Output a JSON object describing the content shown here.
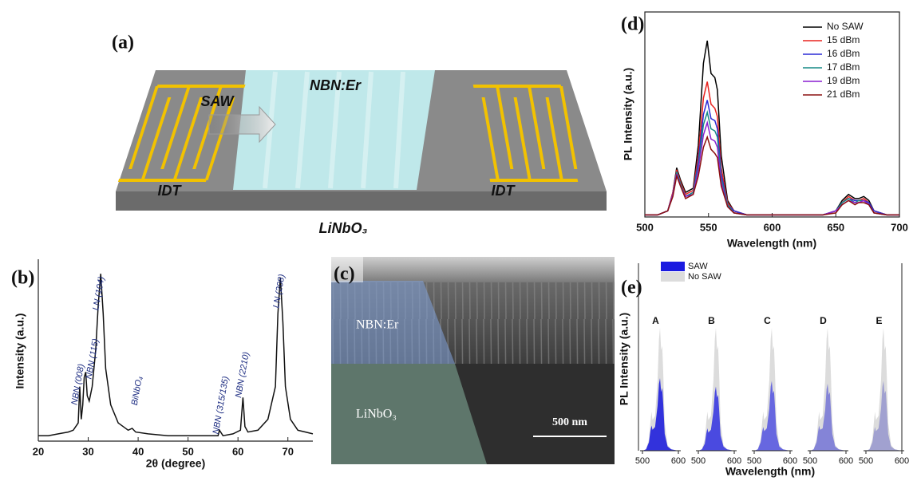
{
  "figure": {
    "panel_a": {
      "label": "(a)",
      "film": "NBN:Er",
      "wave": "SAW",
      "idt_left": "IDT",
      "idt_right": "IDT",
      "substrate": "LiNbO₃"
    },
    "panel_c": {
      "label": "(c)",
      "layer_top": "NBN:Er",
      "layer_bottom": "LiNbO₃",
      "scale_bar": "500 nm"
    }
  },
  "chart_data": [
    {
      "type": "line",
      "label": "(b)",
      "x_label": "2θ (degree)",
      "y_label": "Intensity (a.u.)",
      "x": [
        20,
        22,
        24,
        26,
        27,
        28,
        28.3,
        28.6,
        28.9,
        29.2,
        29.5,
        29.8,
        30.2,
        30.8,
        31.5,
        32,
        32.5,
        33,
        33.5,
        34.5,
        36,
        38,
        38.8,
        39.5,
        42,
        46,
        50,
        54,
        56,
        56.3,
        57,
        59,
        60.5,
        61,
        61.4,
        62,
        64,
        66,
        67.5,
        68,
        68.5,
        69,
        69.5,
        70.5,
        72,
        75
      ],
      "series": [
        {
          "color": "#111111",
          "values": [
            3,
            3,
            4,
            5,
            6,
            10,
            30,
            12,
            20,
            35,
            38,
            25,
            22,
            30,
            50,
            75,
            92,
            70,
            40,
            20,
            10,
            6,
            7,
            5,
            4,
            3,
            3,
            3,
            3,
            6,
            3,
            4,
            6,
            24,
            8,
            5,
            6,
            12,
            30,
            70,
            90,
            65,
            30,
            12,
            6,
            4
          ]
        }
      ],
      "annotations": [
        "NBN (008)",
        "NBN (115)",
        "LN (104)",
        "BiNbO₄",
        "NBN (315/135)",
        "NBN (2210)",
        "LN (208)"
      ],
      "xlim": [
        20,
        75
      ],
      "xticks": [
        20,
        30,
        40,
        50,
        60,
        70
      ],
      "ylim": [
        0,
        100
      ]
    },
    {
      "type": "line",
      "label": "(d)",
      "x_label": "Wavelength (nm)",
      "y_label": "PL Intensity (a.u.)",
      "x": [
        500,
        510,
        518,
        522,
        525,
        528,
        532,
        538,
        542,
        546,
        549,
        552,
        555,
        557,
        560,
        565,
        570,
        580,
        600,
        640,
        650,
        655,
        660,
        665,
        668,
        672,
        676,
        680,
        690,
        700
      ],
      "series": [
        {
          "name": "No SAW",
          "color": "#000000",
          "values": [
            1,
            1,
            3,
            12,
            24,
            18,
            12,
            14,
            35,
            75,
            86,
            70,
            68,
            62,
            30,
            8,
            3,
            1,
            1,
            1,
            3,
            8,
            11,
            9,
            9,
            10,
            8,
            3,
            1,
            1
          ]
        },
        {
          "name": "15 dBm",
          "color": "#e8231f",
          "values": [
            1,
            1,
            3,
            12,
            23,
            17,
            11,
            13,
            30,
            58,
            66,
            55,
            53,
            49,
            24,
            7,
            3,
            1,
            1,
            1,
            3,
            7,
            10,
            8,
            8,
            9,
            7,
            3,
            1,
            1
          ]
        },
        {
          "name": "16 dBm",
          "color": "#2b2bd6",
          "values": [
            1,
            1,
            3,
            11,
            22,
            16,
            10,
            12,
            27,
            50,
            57,
            48,
            47,
            43,
            21,
            6,
            3,
            1,
            1,
            1,
            3,
            7,
            9,
            8,
            8,
            8,
            7,
            3,
            1,
            1
          ]
        },
        {
          "name": "17 dBm",
          "color": "#178a86",
          "values": [
            1,
            1,
            3,
            11,
            22,
            16,
            10,
            12,
            25,
            45,
            51,
            43,
            42,
            39,
            19,
            6,
            2,
            1,
            1,
            1,
            3,
            7,
            9,
            7,
            8,
            8,
            6,
            2,
            1,
            1
          ]
        },
        {
          "name": "19 dBm",
          "color": "#8a1fd0",
          "values": [
            1,
            1,
            3,
            11,
            21,
            15,
            10,
            11,
            23,
            40,
            46,
            38,
            37,
            34,
            17,
            5,
            2,
            1,
            1,
            1,
            3,
            6,
            8,
            7,
            7,
            8,
            6,
            2,
            1,
            1
          ]
        },
        {
          "name": "21 dBm",
          "color": "#8b1010",
          "values": [
            1,
            1,
            3,
            10,
            20,
            15,
            9,
            11,
            20,
            34,
            39,
            33,
            31,
            29,
            15,
            5,
            2,
            1,
            1,
            1,
            2,
            6,
            8,
            6,
            7,
            7,
            6,
            2,
            1,
            1
          ]
        }
      ],
      "xlim": [
        500,
        700
      ],
      "xticks": [
        500,
        550,
        600,
        650,
        700
      ],
      "ylim": [
        0,
        100
      ],
      "legend": "upper right"
    },
    {
      "type": "area",
      "label": "(e)",
      "x_label": "Wavelength (nm)",
      "y_label": "PL Intensity (a.u.)",
      "x": [
        500,
        510,
        518,
        522,
        525,
        528,
        535,
        542,
        546,
        549,
        552,
        555,
        558,
        562,
        570,
        580,
        600
      ],
      "xlim": [
        500,
        600
      ],
      "xticks": [
        500,
        600
      ],
      "ylim": [
        0,
        100
      ],
      "legend": "upper left",
      "series": [
        {
          "name": "SAW",
          "color": "#1a1ae0"
        },
        {
          "name": "No SAW",
          "color": "#dcdcdc",
          "values": [
            0,
            1,
            8,
            20,
            28,
            22,
            25,
            50,
            80,
            88,
            72,
            75,
            55,
            20,
            4,
            1,
            0
          ]
        }
      ],
      "panels": [
        {
          "label": "A",
          "color": "#1f1fdc",
          "values": [
            0,
            1,
            6,
            14,
            18,
            15,
            17,
            32,
            48,
            52,
            42,
            45,
            33,
            12,
            3,
            1,
            0
          ]
        },
        {
          "label": "B",
          "color": "#3a3ae0",
          "values": [
            0,
            1,
            5,
            12,
            16,
            13,
            15,
            28,
            42,
            46,
            38,
            40,
            29,
            11,
            3,
            1,
            0
          ]
        },
        {
          "label": "C",
          "color": "#5a5ae0",
          "values": [
            0,
            1,
            6,
            13,
            17,
            14,
            16,
            30,
            46,
            50,
            41,
            43,
            31,
            12,
            3,
            1,
            0
          ]
        },
        {
          "label": "D",
          "color": "#7a7ad6",
          "values": [
            0,
            1,
            6,
            13,
            18,
            15,
            16,
            29,
            44,
            48,
            40,
            42,
            30,
            12,
            3,
            1,
            0
          ]
        },
        {
          "label": "E",
          "color": "#9a9ace",
          "values": [
            0,
            1,
            6,
            13,
            17,
            14,
            16,
            30,
            46,
            50,
            41,
            43,
            31,
            12,
            3,
            1,
            0
          ]
        }
      ]
    }
  ]
}
